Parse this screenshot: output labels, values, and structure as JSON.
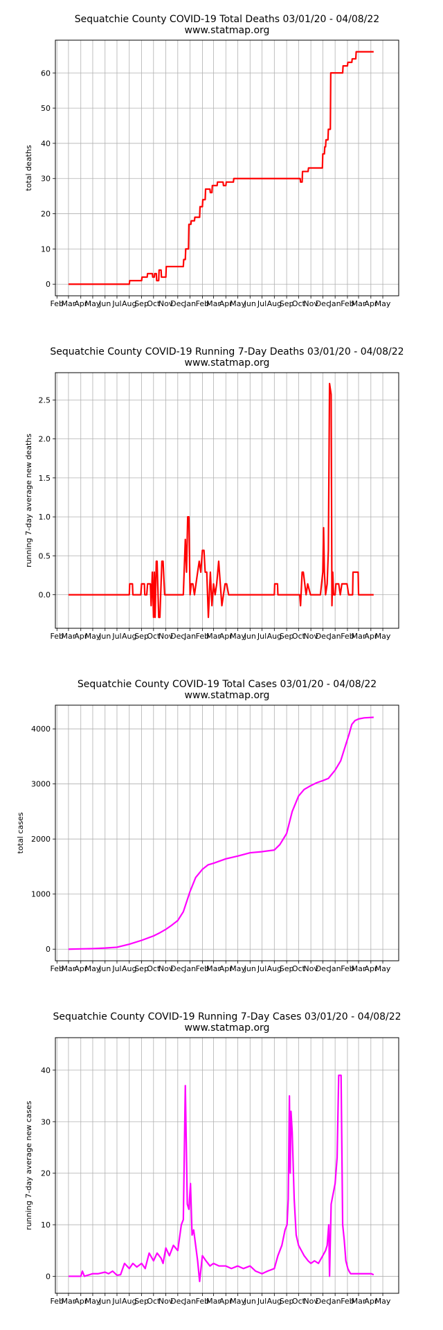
{
  "chart_data": [
    {
      "type": "line",
      "title": "Sequatchie County COVID-19 Total Deaths 03/01/20 - 04/08/22",
      "subtitle": "www.statmap.org",
      "xlabel": "",
      "ylabel": "total deaths",
      "color": "#ff0000",
      "x_tick_labels": [
        "Feb",
        "Mar",
        "Apr",
        "May",
        "Jun",
        "Jul",
        "Aug",
        "Sep",
        "Oct",
        "Nov",
        "Dec",
        "Jan",
        "Feb",
        "Mar",
        "Apr",
        "May",
        "Jun",
        "Jul",
        "Aug",
        "Sep",
        "Oct",
        "Nov",
        "Dec",
        "Jan",
        "Feb",
        "Mar",
        "Apr",
        "May"
      ],
      "y_ticks": [
        0,
        10,
        20,
        30,
        40,
        50,
        60
      ],
      "ylim": [
        -3.3,
        69.3
      ],
      "grid": true,
      "series": [
        {
          "x": [
            "2020-03-01",
            "2020-08-01",
            "2020-08-02",
            "2020-09-01",
            "2020-09-02",
            "2020-09-15",
            "2020-09-16",
            "2020-09-28",
            "2020-09-29",
            "2020-10-03",
            "2020-10-04",
            "2020-10-08",
            "2020-10-09",
            "2020-10-14",
            "2020-10-15",
            "2020-10-20",
            "2020-10-21",
            "2020-11-01",
            "2020-11-02",
            "2020-11-06",
            "2020-11-07",
            "2020-12-15",
            "2020-12-16",
            "2020-12-20",
            "2020-12-21",
            "2020-12-28",
            "2020-12-29",
            "2021-01-03",
            "2021-01-04",
            "2021-01-12",
            "2021-01-13",
            "2021-01-25",
            "2021-01-26",
            "2021-02-01",
            "2021-02-02",
            "2021-02-08",
            "2021-02-09",
            "2021-02-20",
            "2021-02-21",
            "2021-02-25",
            "2021-02-26",
            "2021-03-10",
            "2021-03-11",
            "2021-03-25",
            "2021-03-26",
            "2021-04-01",
            "2021-04-02",
            "2021-04-08",
            "2021-04-09",
            "2021-04-20",
            "2021-04-21",
            "2021-08-01",
            "2021-08-02",
            "2021-10-05",
            "2021-10-06",
            "2021-10-10",
            "2021-10-11",
            "2021-10-25",
            "2021-10-26",
            "2021-11-30",
            "2021-11-31",
            "2021-12-05",
            "2021-12-06",
            "2021-12-08",
            "2021-12-09",
            "2021-12-14",
            "2021-12-15",
            "2021-12-20",
            "2021-12-21",
            "2022-01-10",
            "2022-01-11",
            "2022-01-20",
            "2022-01-21",
            "2022-02-01",
            "2022-02-02",
            "2022-02-12",
            "2022-02-13",
            "2022-02-22",
            "2022-02-23",
            "2022-04-08"
          ],
          "y": [
            0,
            0,
            1,
            1,
            2,
            2,
            3,
            3,
            2,
            2,
            3,
            3,
            1,
            1,
            4,
            4,
            2,
            2,
            5,
            5,
            5,
            5,
            7,
            7,
            10,
            10,
            17,
            17,
            18,
            18,
            19,
            19,
            22,
            22,
            24,
            24,
            27,
            27,
            26,
            26,
            28,
            28,
            29,
            29,
            28,
            28,
            29,
            29,
            29,
            29,
            30,
            30,
            30,
            30,
            29,
            29,
            32,
            32,
            33,
            33,
            37,
            37,
            39,
            39,
            41,
            41,
            44,
            44,
            60,
            60,
            60,
            60,
            62,
            62,
            63,
            63,
            64,
            64,
            66,
            66
          ]
        }
      ]
    },
    {
      "type": "line",
      "title": "Sequatchie County COVID-19 Running 7-Day Deaths 03/01/20 - 04/08/22",
      "subtitle": "www.statmap.org",
      "xlabel": "",
      "ylabel": "running 7-day average new deaths",
      "color": "#ff0000",
      "x_tick_labels": [
        "Feb",
        "Mar",
        "Apr",
        "May",
        "Jun",
        "Jul",
        "Aug",
        "Sep",
        "Oct",
        "Nov",
        "Dec",
        "Jan",
        "Feb",
        "Mar",
        "Apr",
        "May",
        "Jun",
        "Jul",
        "Aug",
        "Sep",
        "Oct",
        "Nov",
        "Dec",
        "Jan",
        "Feb",
        "Mar",
        "Apr",
        "May"
      ],
      "y_ticks": [
        0.0,
        0.5,
        1.0,
        1.5,
        2.0,
        2.5
      ],
      "y_tick_labels": [
        "0.0",
        "0.5",
        "1.0",
        "1.5",
        "2.0",
        "2.5"
      ],
      "ylim": [
        -0.43,
        2.85
      ],
      "grid": true,
      "series": [
        {
          "x": [
            "2020-03-01",
            "2020-08-01",
            "2020-08-02",
            "2020-08-09",
            "2020-08-10",
            "2020-08-30",
            "2020-09-01",
            "2020-09-08",
            "2020-09-09",
            "2020-09-14",
            "2020-09-16",
            "2020-09-23",
            "2020-09-25",
            "2020-09-28",
            "2020-10-01",
            "2020-10-03",
            "2020-10-05",
            "2020-10-08",
            "2020-10-10",
            "2020-10-14",
            "2020-10-17",
            "2020-10-22",
            "2020-10-25",
            "2020-10-29",
            "2020-11-02",
            "2020-11-09",
            "2020-11-10",
            "2020-12-15",
            "2020-12-17",
            "2020-12-20",
            "2020-12-23",
            "2020-12-26",
            "2020-12-29",
            "2021-01-01",
            "2021-01-04",
            "2021-01-08",
            "2021-01-12",
            "2021-01-20",
            "2021-01-24",
            "2021-01-28",
            "2021-02-01",
            "2021-02-05",
            "2021-02-08",
            "2021-02-12",
            "2021-02-16",
            "2021-02-21",
            "2021-02-25",
            "2021-03-01",
            "2021-03-05",
            "2021-03-09",
            "2021-03-14",
            "2021-03-18",
            "2021-03-22",
            "2021-03-26",
            "2021-03-30",
            "2021-04-03",
            "2021-04-08",
            "2021-04-15",
            "2021-04-20",
            "2021-04-27",
            "2021-04-28",
            "2021-08-01",
            "2021-08-02",
            "2021-08-09",
            "2021-08-10",
            "2021-10-04",
            "2021-10-06",
            "2021-10-10",
            "2021-10-13",
            "2021-10-20",
            "2021-10-24",
            "2021-10-31",
            "2021-11-02",
            "2021-11-25",
            "2021-12-01",
            "2021-12-03",
            "2021-12-05",
            "2021-12-08",
            "2021-12-12",
            "2021-12-15",
            "2021-12-18",
            "2021-12-22",
            "2021-12-24",
            "2021-12-26",
            "2021-12-28",
            "2022-01-01",
            "2022-01-03",
            "2022-01-10",
            "2022-01-14",
            "2022-01-18",
            "2022-01-31",
            "2022-02-04",
            "2022-02-14",
            "2022-02-15",
            "2022-02-28",
            "2022-03-01",
            "2022-03-09",
            "2022-03-12",
            "2022-04-08"
          ],
          "y": [
            0,
            0,
            0.14,
            0.14,
            0,
            0,
            0.14,
            0.14,
            0,
            0,
            0.14,
            0.14,
            -0.14,
            0.29,
            -0.29,
            0.29,
            -0.29,
            0.43,
            0.43,
            -0.29,
            -0.29,
            0.43,
            0.43,
            0,
            0,
            0,
            0,
            0,
            0.29,
            0.71,
            0.29,
            1.0,
            1.0,
            0,
            0.14,
            0.14,
            0,
            0.29,
            0.43,
            0.29,
            0.57,
            0.57,
            0.29,
            0.29,
            -0.29,
            0.29,
            -0.14,
            0.14,
            0,
            0.14,
            0.43,
            0.14,
            -0.14,
            0,
            0.14,
            0.14,
            0,
            0,
            0,
            0,
            0,
            0,
            0.14,
            0.14,
            0,
            0,
            -0.14,
            0.29,
            0.29,
            0,
            0.14,
            0,
            0,
            0,
            0.29,
            0.86,
            0.29,
            0,
            0.14,
            0.57,
            2.71,
            2.57,
            -0.14,
            0.29,
            0,
            0,
            0.14,
            0.14,
            0,
            0.14,
            0.14,
            0,
            0,
            0.29,
            0.29,
            0,
            0,
            0,
            0
          ]
        }
      ]
    },
    {
      "type": "line",
      "title": "Sequatchie County COVID-19 Total Cases 03/01/20 - 04/08/22",
      "subtitle": "www.statmap.org",
      "xlabel": "",
      "ylabel": "total cases",
      "color": "#ff00ff",
      "x_tick_labels": [
        "Feb",
        "Mar",
        "Apr",
        "May",
        "Jun",
        "Jul",
        "Aug",
        "Sep",
        "Oct",
        "Nov",
        "Dec",
        "Jan",
        "Feb",
        "Mar",
        "Apr",
        "May",
        "Jun",
        "Jul",
        "Aug",
        "Sep",
        "Oct",
        "Nov",
        "Dec",
        "Jan",
        "Feb",
        "Mar",
        "Apr",
        "May"
      ],
      "y_ticks": [
        0,
        1000,
        2000,
        3000,
        4000
      ],
      "ylim": [
        -211,
        4430
      ],
      "grid": true,
      "series": [
        {
          "x": [
            "2020-03-01",
            "2020-04-01",
            "2020-05-01",
            "2020-06-01",
            "2020-07-01",
            "2020-08-01",
            "2020-09-01",
            "2020-10-01",
            "2020-10-15",
            "2020-11-01",
            "2020-11-15",
            "2020-12-01",
            "2020-12-15",
            "2021-01-01",
            "2021-01-15",
            "2021-02-01",
            "2021-02-15",
            "2021-03-01",
            "2021-04-01",
            "2021-05-01",
            "2021-06-01",
            "2021-07-01",
            "2021-08-01",
            "2021-08-15",
            "2021-09-01",
            "2021-09-15",
            "2021-10-01",
            "2021-10-15",
            "2021-11-01",
            "2021-11-15",
            "2021-12-01",
            "2021-12-15",
            "2022-01-01",
            "2022-01-15",
            "2022-01-25",
            "2022-02-05",
            "2022-02-12",
            "2022-02-20",
            "2022-03-01",
            "2022-03-15",
            "2022-04-08"
          ],
          "y": [
            0,
            5,
            10,
            20,
            35,
            90,
            160,
            240,
            290,
            360,
            430,
            520,
            680,
            1050,
            1300,
            1450,
            1530,
            1560,
            1640,
            1690,
            1750,
            1770,
            1800,
            1900,
            2100,
            2500,
            2780,
            2900,
            2970,
            3020,
            3060,
            3100,
            3250,
            3420,
            3650,
            3900,
            4080,
            4150,
            4180,
            4200,
            4210
          ]
        }
      ]
    },
    {
      "type": "line",
      "title": "Sequatchie County COVID-19 Running 7-Day Cases 03/01/20 - 04/08/22",
      "subtitle": "www.statmap.org",
      "xlabel": "",
      "ylabel": "running 7-day average new cases",
      "color": "#ff00ff",
      "x_tick_labels": [
        "Feb",
        "Mar",
        "Apr",
        "May",
        "Jun",
        "Jul",
        "Aug",
        "Sep",
        "Oct",
        "Nov",
        "Dec",
        "Jan",
        "Feb",
        "Mar",
        "Apr",
        "May",
        "Jun",
        "Jul",
        "Aug",
        "Sep",
        "Oct",
        "Nov",
        "Dec",
        "Jan",
        "Feb",
        "Mar",
        "Apr",
        "May"
      ],
      "y_ticks": [
        0,
        10,
        20,
        30,
        40
      ],
      "ylim": [
        -3.3,
        46.3
      ],
      "grid": true,
      "series": [
        {
          "x": [
            "2020-03-01",
            "2020-04-01",
            "2020-04-05",
            "2020-04-10",
            "2020-05-01",
            "2020-05-15",
            "2020-06-01",
            "2020-06-10",
            "2020-06-20",
            "2020-07-01",
            "2020-07-10",
            "2020-07-20",
            "2020-08-01",
            "2020-08-10",
            "2020-08-20",
            "2020-09-01",
            "2020-09-10",
            "2020-09-20",
            "2020-10-01",
            "2020-10-10",
            "2020-10-20",
            "2020-10-25",
            "2020-11-01",
            "2020-11-10",
            "2020-11-20",
            "2020-12-01",
            "2020-12-10",
            "2020-12-15",
            "2020-12-20",
            "2020-12-25",
            "2020-12-29",
            "2021-01-02",
            "2021-01-06",
            "2021-01-10",
            "2021-01-15",
            "2021-01-20",
            "2021-01-25",
            "2021-02-01",
            "2021-02-10",
            "2021-02-15",
            "2021-02-20",
            "2021-03-01",
            "2021-03-15",
            "2021-04-01",
            "2021-04-15",
            "2021-05-01",
            "2021-05-15",
            "2021-06-01",
            "2021-06-15",
            "2021-07-01",
            "2021-07-15",
            "2021-08-01",
            "2021-08-10",
            "2021-08-20",
            "2021-08-28",
            "2021-09-02",
            "2021-09-05",
            "2021-09-08",
            "2021-09-10",
            "2021-09-12",
            "2021-09-15",
            "2021-09-20",
            "2021-09-25",
            "2021-10-01",
            "2021-10-08",
            "2021-10-15",
            "2021-10-25",
            "2021-11-01",
            "2021-11-10",
            "2021-11-20",
            "2021-12-01",
            "2021-12-08",
            "2021-12-12",
            "2021-12-16",
            "2021-12-18",
            "2021-12-22",
            "2022-01-01",
            "2022-01-06",
            "2022-01-10",
            "2022-01-16",
            "2022-01-20",
            "2022-01-24",
            "2022-01-28",
            "2022-02-02",
            "2022-02-05",
            "2022-02-09",
            "2022-02-17",
            "2022-02-22",
            "2022-02-27",
            "2022-03-04",
            "2022-03-10",
            "2022-03-25",
            "2022-04-02",
            "2022-04-08"
          ],
          "y": [
            0,
            0,
            1,
            0,
            0.5,
            0.5,
            0.8,
            0.5,
            1,
            0.2,
            0.3,
            2.5,
            1.5,
            2.5,
            1.8,
            2.5,
            1.5,
            4.5,
            3,
            4.5,
            3.5,
            2.5,
            5.5,
            4,
            6,
            5,
            10,
            11,
            37,
            14,
            13,
            18,
            8,
            9,
            6,
            3,
            -1,
            4,
            3,
            2.5,
            2,
            2.5,
            2,
            2,
            1.5,
            2,
            1.5,
            2,
            1,
            0.5,
            1,
            1.5,
            4,
            6,
            9,
            10,
            15,
            35,
            20,
            32,
            28,
            15,
            8,
            6,
            5,
            4,
            3,
            2.5,
            3,
            2.5,
            4,
            5,
            6,
            10,
            0,
            14,
            18,
            23,
            39,
            39,
            10,
            7,
            3,
            1.5,
            1,
            0.5,
            0.5,
            0.5,
            0.5,
            0.5,
            0.5,
            0.5,
            0.5,
            0.3
          ]
        }
      ]
    }
  ]
}
